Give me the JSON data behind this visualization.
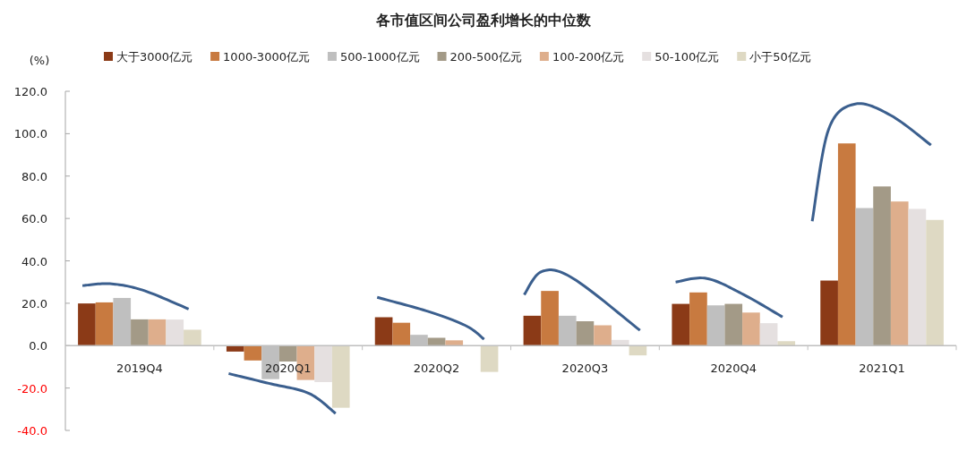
{
  "chart_data": {
    "type": "bar",
    "title": "各市值区间公司盈利增长的中位数",
    "ylabel": "(%)",
    "categories": [
      "2019Q4",
      "2020Q1",
      "2020Q2",
      "2020Q3",
      "2020Q4",
      "2021Q1"
    ],
    "series": [
      {
        "name": "大于3000亿元",
        "color": "#8b3a17",
        "values": [
          19.9,
          -2.8,
          13.4,
          14.1,
          19.7,
          30.7
        ]
      },
      {
        "name": "1000-3000亿元",
        "color": "#c87a40",
        "values": [
          20.4,
          -7.0,
          10.8,
          25.8,
          25.1,
          95.4
        ]
      },
      {
        "name": "500-1000亿元",
        "color": "#bfbfbf",
        "values": [
          22.5,
          -15.8,
          5.1,
          14.1,
          19.0,
          64.9
        ]
      },
      {
        "name": "200-500亿元",
        "color": "#a39a87",
        "values": [
          12.4,
          -7.5,
          3.7,
          11.5,
          19.7,
          75.1
        ]
      },
      {
        "name": "100-200亿元",
        "color": "#deae8c",
        "values": [
          12.4,
          -16.2,
          2.5,
          9.6,
          15.6,
          68.0
        ]
      },
      {
        "name": "50-100亿元",
        "color": "#e5e0e0",
        "values": [
          12.3,
          -17.2,
          null,
          2.7,
          10.6,
          64.5
        ]
      },
      {
        "name": "小于50亿元",
        "color": "#ded9c3",
        "values": [
          7.5,
          -29.3,
          -12.4,
          -4.6,
          2.1,
          59.3
        ]
      }
    ],
    "ylim": [
      -40,
      120
    ],
    "yticks": [
      {
        "value": 120,
        "label": "120.0"
      },
      {
        "value": 100,
        "label": "100.0"
      },
      {
        "value": 80,
        "label": "80.0"
      },
      {
        "value": 60,
        "label": "60.0"
      },
      {
        "value": 40,
        "label": "40.0"
      },
      {
        "value": 20,
        "label": "20.0"
      },
      {
        "value": 0,
        "label": "0.0"
      },
      {
        "value": -20,
        "label": "-20.0"
      },
      {
        "value": -40,
        "label": "-40.0"
      }
    ],
    "grid": false,
    "legend": "top"
  }
}
